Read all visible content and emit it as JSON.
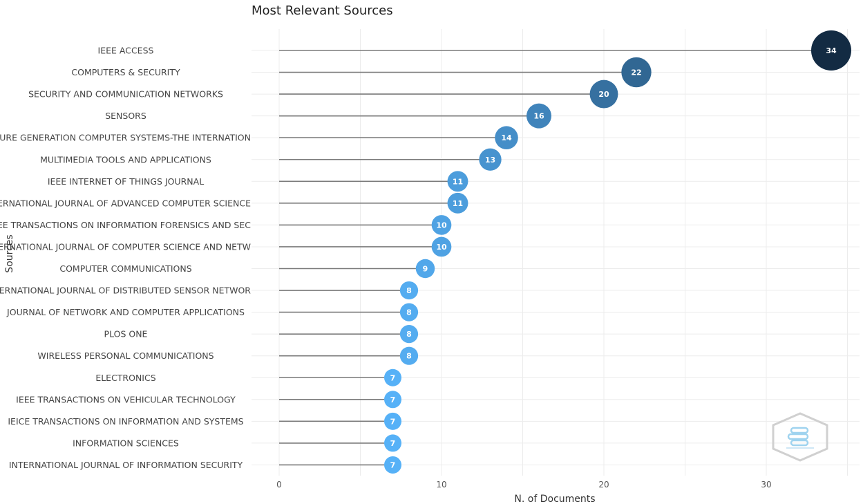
{
  "chart_data": {
    "type": "lollipop",
    "title": "Most Relevant Sources",
    "xlabel": "N. of Documents",
    "ylabel": "Sources",
    "xlim": [
      0,
      35
    ],
    "xticks": [
      0,
      10,
      20,
      30
    ],
    "grid": true,
    "legend": "none",
    "categories": [
      "IEEE ACCESS",
      "COMPUTERS & SECURITY",
      "SECURITY AND COMMUNICATION NETWORKS",
      "SENSORS",
      "FUTURE GENERATION COMPUTER SYSTEMS-THE INTERNATION",
      "MULTIMEDIA TOOLS AND APPLICATIONS",
      "IEEE INTERNET OF THINGS JOURNAL",
      "INTERNATIONAL JOURNAL OF ADVANCED COMPUTER SCIENCE",
      "IEEE TRANSACTIONS ON INFORMATION FORENSICS AND SEC",
      "INTERNATIONAL JOURNAL OF COMPUTER SCIENCE AND NETW",
      "COMPUTER COMMUNICATIONS",
      "INTERNATIONAL JOURNAL OF DISTRIBUTED SENSOR NETWOR",
      "JOURNAL OF NETWORK AND COMPUTER APPLICATIONS",
      "PLOS ONE",
      "WIRELESS PERSONAL COMMUNICATIONS",
      "ELECTRONICS",
      "IEEE TRANSACTIONS ON VEHICULAR TECHNOLOGY",
      "IEICE TRANSACTIONS ON INFORMATION AND SYSTEMS",
      "INFORMATION SCIENCES",
      "INTERNATIONAL JOURNAL OF INFORMATION SECURITY"
    ],
    "values": [
      34,
      22,
      20,
      16,
      14,
      13,
      11,
      11,
      10,
      10,
      9,
      8,
      8,
      8,
      8,
      7,
      7,
      7,
      7,
      7
    ],
    "color_low": "#56B1F7",
    "color_high": "#132B43",
    "stem_color": "#7a7a7a"
  }
}
